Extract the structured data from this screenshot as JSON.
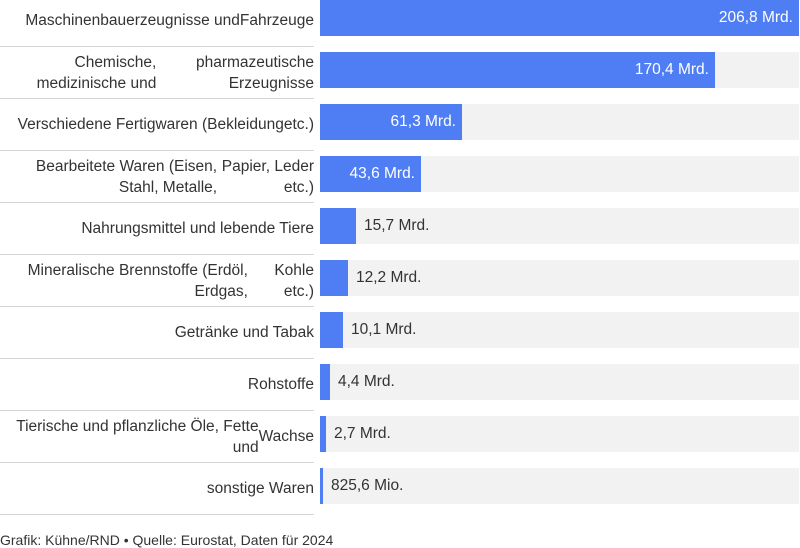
{
  "chart_data": {
    "type": "bar",
    "orientation": "horizontal",
    "categories": [
      "Maschinenbauerzeugnisse und Fahrzeuge",
      "Chemische, medizinische und pharmazeutische Erzeugnisse",
      "Verschiedene Fertigwaren (Bekleidung etc.)",
      "Bearbeitete Waren (Eisen, Stahl, Metalle, Papier, Leder etc.)",
      "Nahrungsmittel und lebende Tiere",
      "Mineralische Brennstoffe (Erdöl, Erdgas, Kohle etc.)",
      "Getränke und Tabak",
      "Rohstoffe",
      "Tierische und pflanzliche Öle, Fette und Wachse",
      "sonstige Waren"
    ],
    "label_lines": [
      [
        "Maschinenbauerzeugnisse und",
        "Fahrzeuge"
      ],
      [
        "Chemische, medizinische und",
        "pharmazeutische Erzeugnisse"
      ],
      [
        "Verschiedene Fertigwaren (Bekleidung",
        "etc.)"
      ],
      [
        "Bearbeitete Waren (Eisen, Stahl, Metalle,",
        "Papier, Leder etc.)"
      ],
      [
        "Nahrungsmittel und lebende Tiere"
      ],
      [
        "Mineralische Brennstoffe (Erdöl, Erdgas,",
        "Kohle etc.)"
      ],
      [
        "Getränke und Tabak"
      ],
      [
        "Rohstoffe"
      ],
      [
        "Tierische und pflanzliche Öle, Fette und",
        "Wachse"
      ],
      [
        "sonstige Waren"
      ]
    ],
    "values": [
      206.8,
      170.4,
      61.3,
      43.6,
      15.7,
      12.2,
      10.1,
      4.4,
      2.7,
      0.8256
    ],
    "value_labels": [
      "206,8 Mrd.",
      "170,4 Mrd.",
      "61,3 Mrd.",
      "43,6 Mrd.",
      "15,7 Mrd.",
      "12,2 Mrd.",
      "10,1 Mrd.",
      "4,4 Mrd.",
      "2,7 Mrd.",
      "825,6 Mio."
    ],
    "unit": "Mrd.",
    "xlim": [
      0,
      206.8
    ],
    "bar_color": "#4f7df3",
    "track_color": "#f2f2f2",
    "grid": false,
    "legend": "none"
  },
  "footer": "Grafik: Kühne/RND • Quelle: Eurostat, Daten für 2024"
}
